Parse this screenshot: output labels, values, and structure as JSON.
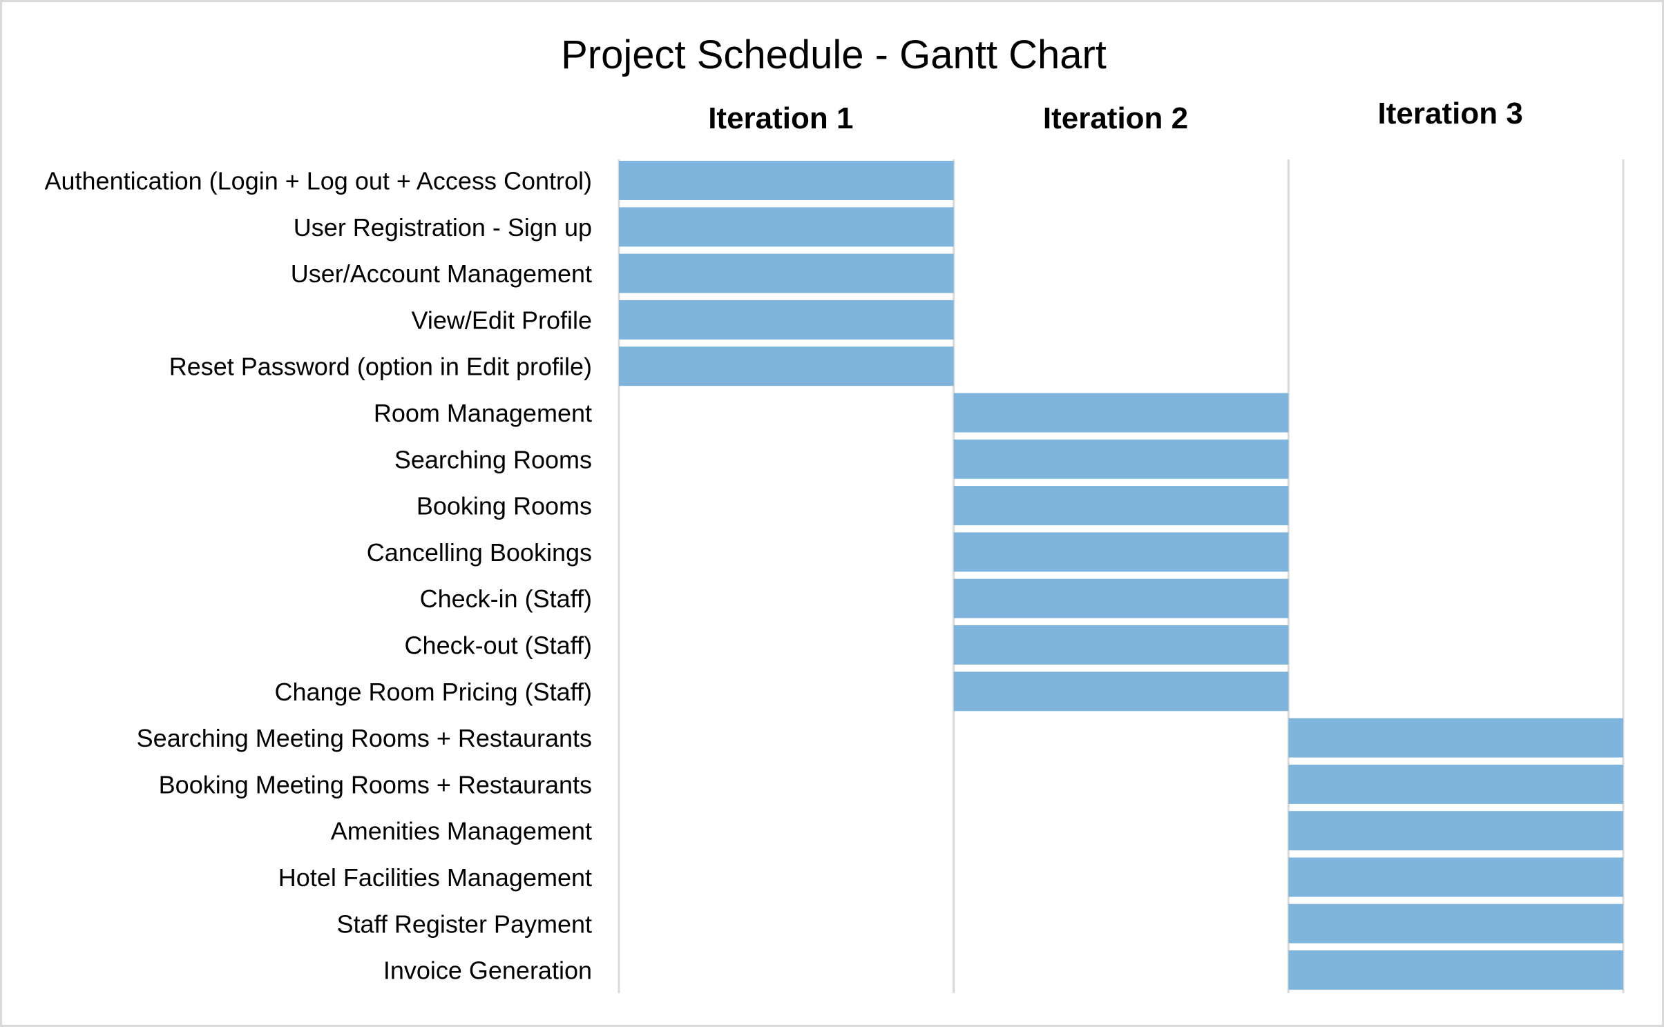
{
  "chart_data": {
    "type": "bar",
    "title": "Project Schedule - Gantt Chart",
    "iterations": [
      "Iteration 1",
      "Iteration 2",
      "Iteration 3"
    ],
    "tasks": [
      {
        "name": "Authentication (Login + Log out + Access Control)",
        "start": 0,
        "end": 1
      },
      {
        "name": "User Registration - Sign up",
        "start": 0,
        "end": 1
      },
      {
        "name": "User/Account Management",
        "start": 0,
        "end": 1
      },
      {
        "name": "View/Edit Profile",
        "start": 0,
        "end": 1
      },
      {
        "name": "Reset Password (option in Edit profile)",
        "start": 0,
        "end": 1
      },
      {
        "name": "Room Management",
        "start": 1,
        "end": 2
      },
      {
        "name": "Searching Rooms",
        "start": 1,
        "end": 2
      },
      {
        "name": "Booking Rooms",
        "start": 1,
        "end": 2
      },
      {
        "name": "Cancelling Bookings",
        "start": 1,
        "end": 2
      },
      {
        "name": "Check-in (Staff)",
        "start": 1,
        "end": 2
      },
      {
        "name": "Check-out (Staff)",
        "start": 1,
        "end": 2
      },
      {
        "name": "Change Room Pricing (Staff)",
        "start": 1,
        "end": 2
      },
      {
        "name": "Searching Meeting Rooms + Restaurants",
        "start": 2,
        "end": 3
      },
      {
        "name": "Booking Meeting Rooms + Restaurants",
        "start": 2,
        "end": 3
      },
      {
        "name": "Amenities Management",
        "start": 2,
        "end": 3
      },
      {
        "name": "Hotel Facilities Management",
        "start": 2,
        "end": 3
      },
      {
        "name": "Staff Register Payment",
        "start": 2,
        "end": 3
      },
      {
        "name": "Invoice Generation",
        "start": 2,
        "end": 3
      }
    ],
    "xlim": [
      0,
      3
    ],
    "grid": true,
    "bar_color": "#7fb5dd",
    "grid_color": "#d9d9d9"
  }
}
